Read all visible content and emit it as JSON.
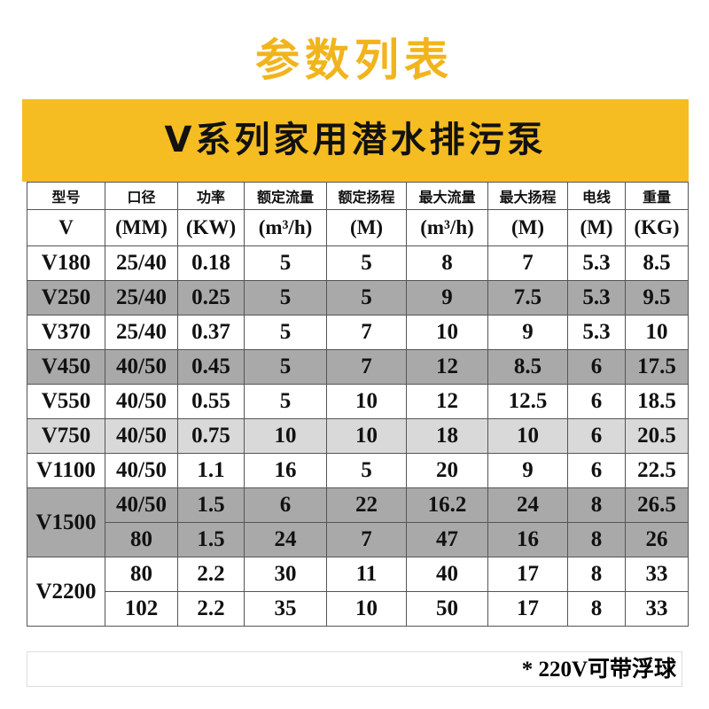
{
  "header": {
    "title": "参数列表",
    "banner": "V系列家用潜水排污泵"
  },
  "table": {
    "header_names": [
      "型号",
      "口径",
      "功率",
      "额定流量",
      "额定扬程",
      "最大流量",
      "最大扬程",
      "电线",
      "重量"
    ],
    "header_units": [
      "V",
      "(MM)",
      "(KW)",
      "(m³/h)",
      "(M)",
      "(m³/h)",
      "(M)",
      "(M)",
      "(KG)"
    ],
    "groups": [
      {
        "model": "V180",
        "lines": [
          [
            "25/40",
            "0.18",
            "5",
            "5",
            "8",
            "7",
            "5.3",
            "8.5"
          ]
        ]
      },
      {
        "model": "V250",
        "lines": [
          [
            "25/40",
            "0.25",
            "5",
            "5",
            "9",
            "7.5",
            "5.3",
            "9.5"
          ]
        ]
      },
      {
        "model": "V370",
        "lines": [
          [
            "25/40",
            "0.37",
            "5",
            "7",
            "10",
            "9",
            "5.3",
            "10"
          ]
        ]
      },
      {
        "model": "V450",
        "lines": [
          [
            "40/50",
            "0.45",
            "5",
            "7",
            "12",
            "8.5",
            "6",
            "17.5"
          ]
        ]
      },
      {
        "model": "V550",
        "lines": [
          [
            "40/50",
            "0.55",
            "5",
            "10",
            "12",
            "12.5",
            "6",
            "18.5"
          ]
        ]
      },
      {
        "model": "V750",
        "lines": [
          [
            "40/50",
            "0.75",
            "10",
            "10",
            "18",
            "10",
            "6",
            "20.5"
          ]
        ]
      },
      {
        "model": "V1100",
        "lines": [
          [
            "40/50",
            "1.1",
            "16",
            "5",
            "20",
            "9",
            "6",
            "22.5"
          ]
        ]
      },
      {
        "model": "V1500",
        "lines": [
          [
            "40/50",
            "1.5",
            "6",
            "22",
            "16.2",
            "24",
            "8",
            "26.5"
          ],
          [
            "80",
            "1.5",
            "24",
            "7",
            "47",
            "16",
            "8",
            "26"
          ]
        ]
      },
      {
        "model": "V2200",
        "lines": [
          [
            "80",
            "2.2",
            "30",
            "11",
            "40",
            "17",
            "8",
            "33"
          ],
          [
            "102",
            "2.2",
            "35",
            "10",
            "50",
            "17",
            "8",
            "33"
          ]
        ]
      }
    ],
    "footnote": "* 220V可带浮球"
  }
}
